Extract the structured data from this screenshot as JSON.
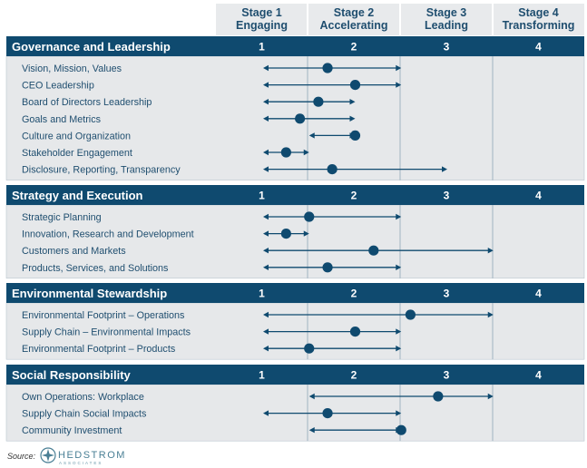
{
  "chart_data": {
    "type": "range-dot",
    "stages": [
      {
        "line1": "Stage 1",
        "line2": "Engaging",
        "num": "1"
      },
      {
        "line1": "Stage 2",
        "line2": "Accelerating",
        "num": "2"
      },
      {
        "line1": "Stage 3",
        "line2": "Leading",
        "num": "3"
      },
      {
        "line1": "Stage 4",
        "line2": "Transforming",
        "num": "4"
      }
    ],
    "xlim": [
      1,
      4
    ],
    "sections": [
      {
        "title": "Governance and Leadership",
        "rows": [
          {
            "label": "Vision, Mission, Values",
            "min": 1.0,
            "max": 2.5,
            "point": 1.7
          },
          {
            "label": "CEO Leadership",
            "min": 1.0,
            "max": 2.5,
            "point": 2.0
          },
          {
            "label": "Board of Directors Leadership",
            "min": 1.0,
            "max": 2.0,
            "point": 1.6
          },
          {
            "label": "Goals and Metrics",
            "min": 1.0,
            "max": 2.0,
            "point": 1.4
          },
          {
            "label": "Culture and Organization",
            "min": 1.5,
            "max": 2.0,
            "point": 2.0
          },
          {
            "label": "Stakeholder Engagement",
            "min": 1.0,
            "max": 1.5,
            "point": 1.25
          },
          {
            "label": "Disclosure, Reporting, Transparency",
            "min": 1.0,
            "max": 3.0,
            "point": 1.75
          }
        ]
      },
      {
        "title": "Strategy and Execution",
        "rows": [
          {
            "label": "Strategic Planning",
            "min": 1.0,
            "max": 2.5,
            "point": 1.5
          },
          {
            "label": "Innovation, Research and Development",
            "min": 1.0,
            "max": 1.5,
            "point": 1.25
          },
          {
            "label": "Customers and Markets",
            "min": 1.0,
            "max": 3.5,
            "point": 2.2
          },
          {
            "label": "Products, Services, and Solutions",
            "min": 1.0,
            "max": 2.5,
            "point": 1.7
          }
        ]
      },
      {
        "title": "Environmental Stewardship",
        "rows": [
          {
            "label": "Environmental Footprint – Operations",
            "min": 1.0,
            "max": 3.5,
            "point": 2.6
          },
          {
            "label": "Supply Chain – Environmental Impacts",
            "min": 1.0,
            "max": 2.5,
            "point": 2.0
          },
          {
            "label": "Environmental Footprint – Products",
            "min": 1.0,
            "max": 2.5,
            "point": 1.5
          }
        ]
      },
      {
        "title": "Social Responsibility",
        "rows": [
          {
            "label": "Own Operations: Workplace",
            "min": 1.5,
            "max": 3.5,
            "point": 2.9
          },
          {
            "label": "Supply Chain Social Impacts",
            "min": 1.0,
            "max": 2.5,
            "point": 1.7
          },
          {
            "label": "Community Investment",
            "min": 1.5,
            "max": 2.5,
            "point": 2.5
          }
        ]
      }
    ]
  },
  "source": {
    "label": "Source:",
    "logo_name": "HEDSTROM",
    "logo_sub": "ASSOCIATES"
  },
  "colors": {
    "navy": "#0f4a6f",
    "panel": "#e6e8ea",
    "header_bg": "#e8eaec",
    "divider": "#8fa6b6",
    "dot": "#0f4a6f"
  }
}
